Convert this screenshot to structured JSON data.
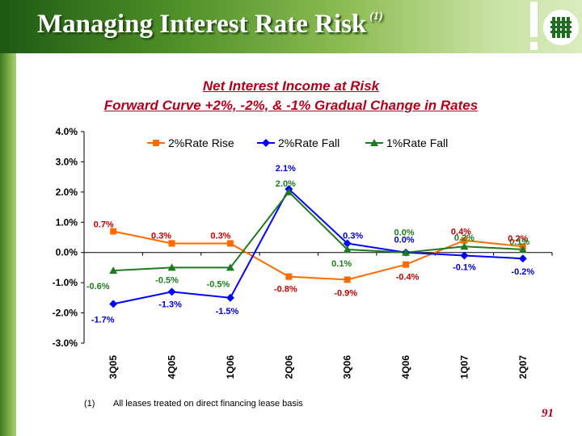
{
  "header": {
    "title": "Managing Interest Rate Risk",
    "title_note": "(1)"
  },
  "chart_data": {
    "type": "line",
    "title": "Net Interest Income at Risk",
    "subtitle": "Forward Curve +2%, -2%, & -1% Gradual Change in Rates",
    "categories": [
      "3Q05",
      "4Q05",
      "1Q06",
      "2Q06",
      "3Q06",
      "4Q06",
      "1Q07",
      "2Q07"
    ],
    "ylim": [
      -3.0,
      4.0
    ],
    "yticks": [
      "4.0%",
      "3.0%",
      "2.0%",
      "1.0%",
      "0.0%",
      "-1.0%",
      "-2.0%",
      "-3.0%"
    ],
    "xlabel": "",
    "ylabel": "",
    "legend_position": "top",
    "series": [
      {
        "name": "2%Rate Rise",
        "color": "#ff6a00",
        "marker": "square",
        "values": [
          0.7,
          0.3,
          0.3,
          -0.8,
          -0.9,
          -0.4,
          0.4,
          0.2
        ],
        "labels": [
          "0.7%",
          "0.3%",
          "0.3%",
          "-0.8%",
          "-0.9%",
          "-0.4%",
          "0.4%",
          "0.2%"
        ],
        "label_color": "#c00000"
      },
      {
        "name": "2%Rate Fall",
        "color": "#0000ff",
        "marker": "diamond",
        "values": [
          -1.7,
          -1.3,
          -1.5,
          2.1,
          0.3,
          0.0,
          -0.1,
          -0.2
        ],
        "labels": [
          "-1.7%",
          "-1.3%",
          "-1.5%",
          "2.1%",
          "0.3%",
          "0.0%",
          "-0.1%",
          "-0.2%"
        ],
        "label_color": "#0000cc"
      },
      {
        "name": "1%Rate Fall",
        "color": "#1e7a1e",
        "marker": "triangle",
        "values": [
          -0.6,
          -0.5,
          -0.5,
          2.0,
          0.1,
          0.0,
          0.2,
          0.1
        ],
        "labels": [
          "-0.6%",
          "-0.5%",
          "-0.5%",
          "2.0%",
          "0.1%",
          "0.0%",
          "0.2%",
          "0.1%"
        ],
        "label_color": "#1e7a1e"
      }
    ]
  },
  "footnote": {
    "marker": "(1)",
    "text": "All leases treated on direct financing lease basis"
  },
  "page_number": "91"
}
